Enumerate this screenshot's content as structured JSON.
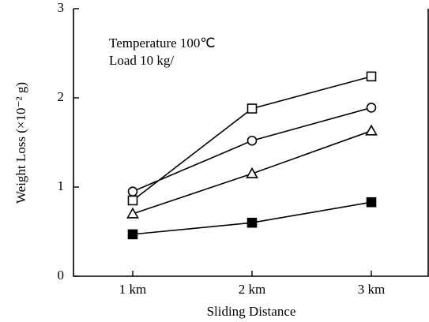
{
  "chart_data": {
    "type": "line",
    "x_label": "Sliding Distance",
    "y_label": "Weight Loss (×10⁻² g)",
    "annotations": [
      "Temperature 100℃",
      "Load 10 kg/"
    ],
    "categories": [
      "1 km",
      "2 km",
      "3 km"
    ],
    "series": [
      {
        "marker": "open-square",
        "color": "#000000",
        "values": [
          0.85,
          1.88,
          2.24
        ]
      },
      {
        "marker": "circle",
        "color": "#000000",
        "values": [
          0.95,
          1.52,
          1.89
        ]
      },
      {
        "marker": "triangle",
        "color": "#000000",
        "values": [
          0.7,
          1.15,
          1.63
        ]
      },
      {
        "marker": "filled-square",
        "color": "#000000",
        "values": [
          0.47,
          0.6,
          0.83
        ]
      }
    ],
    "ylim": [
      0,
      3
    ],
    "yticks": [
      0,
      1,
      2,
      3
    ],
    "grid": false
  }
}
